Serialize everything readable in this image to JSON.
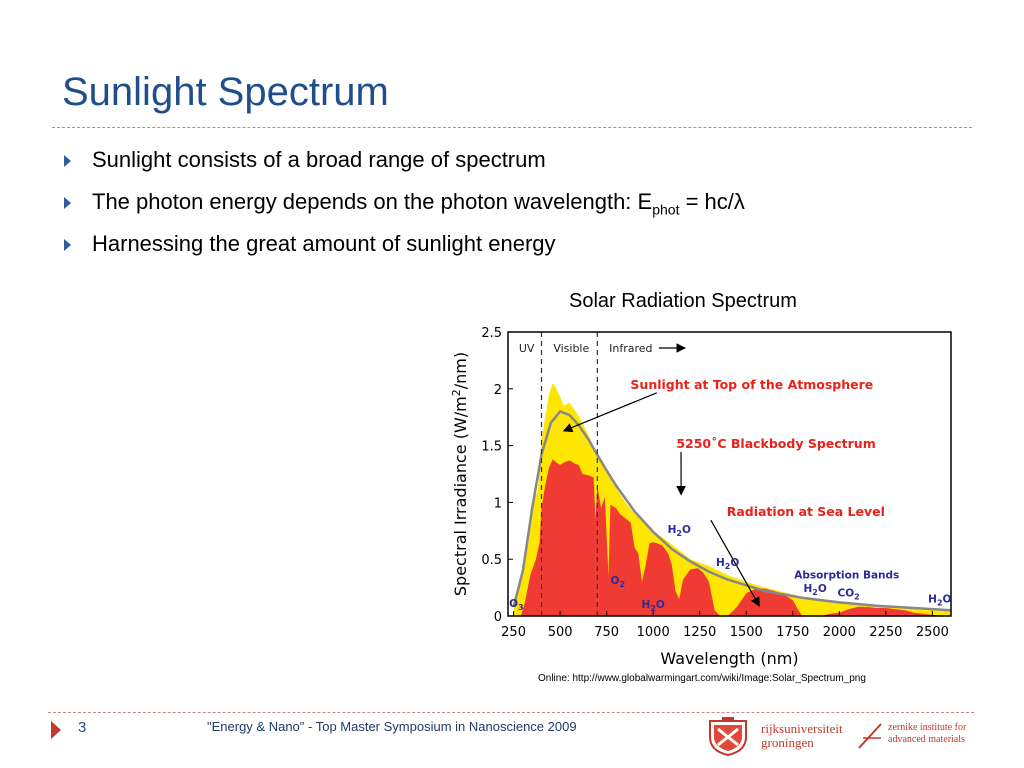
{
  "slide": {
    "title": "Sunlight Spectrum",
    "bullets": [
      {
        "text": "Sunlight consists of a broad range of spectrum"
      },
      {
        "text": "The photon energy depends on the photon wavelength: E",
        "sub": "phot",
        "after": " = hc/λ"
      },
      {
        "text": "Harnessing the great amount of sunlight energy"
      }
    ],
    "chart_caption": "Solar Radiation Spectrum",
    "source": "Online: http://www.globalwarmingart.com/wiki/Image:Solar_Spectrum_png",
    "footer": {
      "page_number": "3",
      "text": "\"Energy & Nano\" - Top Master Symposium in Nanoscience 2009",
      "logo1_line1": "rijksuniversiteit",
      "logo1_line2": "groningen",
      "logo2_line1": "zernike institute for",
      "logo2_line2": "advanced materials"
    },
    "colors": {
      "title": "#1f4e8c",
      "marker": "#2f5d9b",
      "accent": "#c0392b"
    }
  },
  "chart_data": {
    "type": "area",
    "xlabel": "Wavelength (nm)",
    "ylabel_parts": [
      "Spectral Irradiance (W/m",
      "2",
      "/nm)"
    ],
    "xlim": [
      220,
      2600
    ],
    "ylim": [
      0,
      2.5
    ],
    "xticks": [
      250,
      500,
      750,
      1000,
      1250,
      1500,
      1750,
      2000,
      2250,
      2500
    ],
    "yticks": [
      0,
      0.5,
      1,
      1.5,
      2,
      2.5
    ],
    "ytick_labels": [
      "0",
      "0.5",
      "1",
      "1.5",
      "2",
      "2.5"
    ],
    "regions": [
      {
        "label": "UV",
        "x": 320
      },
      {
        "label": "Visible",
        "x": 560
      },
      {
        "label": "Infrared",
        "x": 880
      }
    ],
    "region_boundaries": [
      400,
      700
    ],
    "series": [
      {
        "name": "Sunlight at Top of the Atmosphere",
        "color": "#ffe600",
        "points": [
          [
            250,
            0.04
          ],
          [
            300,
            0.45
          ],
          [
            350,
            1.0
          ],
          [
            380,
            1.1
          ],
          [
            400,
            1.55
          ],
          [
            420,
            1.75
          ],
          [
            440,
            1.95
          ],
          [
            460,
            2.05
          ],
          [
            480,
            2.0
          ],
          [
            500,
            1.93
          ],
          [
            520,
            1.85
          ],
          [
            550,
            1.88
          ],
          [
            600,
            1.76
          ],
          [
            650,
            1.6
          ],
          [
            700,
            1.43
          ],
          [
            750,
            1.28
          ],
          [
            800,
            1.13
          ],
          [
            850,
            1.0
          ],
          [
            900,
            0.9
          ],
          [
            950,
            0.83
          ],
          [
            1000,
            0.75
          ],
          [
            1100,
            0.63
          ],
          [
            1200,
            0.5
          ],
          [
            1300,
            0.44
          ],
          [
            1400,
            0.36
          ],
          [
            1500,
            0.3
          ],
          [
            1600,
            0.25
          ],
          [
            1700,
            0.21
          ],
          [
            1800,
            0.17
          ],
          [
            1900,
            0.15
          ],
          [
            2000,
            0.13
          ],
          [
            2100,
            0.11
          ],
          [
            2200,
            0.09
          ],
          [
            2300,
            0.08
          ],
          [
            2400,
            0.07
          ],
          [
            2500,
            0.06
          ],
          [
            2600,
            0.05
          ]
        ]
      },
      {
        "name": "Radiation at Sea Level",
        "color": "#ef3b33",
        "points": [
          [
            250,
            0
          ],
          [
            290,
            0
          ],
          [
            310,
            0.12
          ],
          [
            340,
            0.36
          ],
          [
            370,
            0.5
          ],
          [
            390,
            0.65
          ],
          [
            400,
            0.95
          ],
          [
            420,
            1.15
          ],
          [
            440,
            1.3
          ],
          [
            460,
            1.38
          ],
          [
            480,
            1.35
          ],
          [
            500,
            1.33
          ],
          [
            520,
            1.35
          ],
          [
            550,
            1.37
          ],
          [
            580,
            1.34
          ],
          [
            600,
            1.33
          ],
          [
            620,
            1.25
          ],
          [
            650,
            1.24
          ],
          [
            680,
            1.22
          ],
          [
            690,
            0.85
          ],
          [
            700,
            1.15
          ],
          [
            720,
            0.95
          ],
          [
            740,
            1.05
          ],
          [
            760,
            0.35
          ],
          [
            770,
            0.98
          ],
          [
            800,
            0.95
          ],
          [
            820,
            0.9
          ],
          [
            850,
            0.86
          ],
          [
            880,
            0.82
          ],
          [
            900,
            0.6
          ],
          [
            920,
            0.55
          ],
          [
            940,
            0.3
          ],
          [
            960,
            0.45
          ],
          [
            980,
            0.64
          ],
          [
            1000,
            0.65
          ],
          [
            1020,
            0.64
          ],
          [
            1050,
            0.62
          ],
          [
            1080,
            0.55
          ],
          [
            1100,
            0.45
          ],
          [
            1120,
            0.22
          ],
          [
            1140,
            0.15
          ],
          [
            1160,
            0.32
          ],
          [
            1200,
            0.41
          ],
          [
            1240,
            0.42
          ],
          [
            1270,
            0.38
          ],
          [
            1300,
            0.3
          ],
          [
            1330,
            0.05
          ],
          [
            1360,
            0.0
          ],
          [
            1400,
            0.0
          ],
          [
            1420,
            0.03
          ],
          [
            1450,
            0.08
          ],
          [
            1500,
            0.2
          ],
          [
            1550,
            0.24
          ],
          [
            1600,
            0.24
          ],
          [
            1650,
            0.22
          ],
          [
            1700,
            0.19
          ],
          [
            1750,
            0.14
          ],
          [
            1780,
            0.05
          ],
          [
            1800,
            0.0
          ],
          [
            1900,
            0.0
          ],
          [
            1950,
            0.02
          ],
          [
            2000,
            0.03
          ],
          [
            2050,
            0.06
          ],
          [
            2100,
            0.08
          ],
          [
            2150,
            0.08
          ],
          [
            2200,
            0.07
          ],
          [
            2250,
            0.07
          ],
          [
            2300,
            0.06
          ],
          [
            2350,
            0.05
          ],
          [
            2400,
            0.03
          ],
          [
            2450,
            0.02
          ],
          [
            2500,
            0.01
          ],
          [
            2600,
            0.0
          ]
        ]
      },
      {
        "name": "5250˚C Blackbody Spectrum",
        "color": "#888888",
        "points": [
          [
            250,
            0.08
          ],
          [
            300,
            0.4
          ],
          [
            350,
            0.95
          ],
          [
            400,
            1.42
          ],
          [
            450,
            1.7
          ],
          [
            500,
            1.8
          ],
          [
            550,
            1.77
          ],
          [
            600,
            1.68
          ],
          [
            650,
            1.56
          ],
          [
            700,
            1.42
          ],
          [
            750,
            1.28
          ],
          [
            800,
            1.15
          ],
          [
            900,
            0.92
          ],
          [
            1000,
            0.74
          ],
          [
            1100,
            0.59
          ],
          [
            1200,
            0.48
          ],
          [
            1300,
            0.39
          ],
          [
            1400,
            0.32
          ],
          [
            1500,
            0.27
          ],
          [
            1600,
            0.22
          ],
          [
            1700,
            0.19
          ],
          [
            1800,
            0.16
          ],
          [
            1900,
            0.14
          ],
          [
            2000,
            0.12
          ],
          [
            2200,
            0.09
          ],
          [
            2400,
            0.07
          ],
          [
            2600,
            0.05
          ]
        ]
      }
    ],
    "annotations": [
      {
        "text": "Sunlight at Top of the Atmosphere",
        "color": "#e8221a",
        "x": 1530,
        "y": 2.0,
        "arrow_to": [
          520,
          1.63
        ]
      },
      {
        "text": "5250˚C Blackbody Spectrum",
        "color": "#e8221a",
        "x": 1660,
        "y": 1.48,
        "arrow_to": [
          1150,
          1.07
        ]
      },
      {
        "text": "Radiation at Sea Level",
        "color": "#e8221a",
        "x": 1820,
        "y": 0.88,
        "arrow_to": [
          1570,
          0.09
        ]
      }
    ],
    "absorption_bands": {
      "title": "Absorption Bands",
      "color": "#2b2b9c",
      "title_pos": [
        2040,
        0.33
      ],
      "labels": [
        {
          "text": "O3",
          "x": 265,
          "y": 0.08
        },
        {
          "text": "O2",
          "x": 810,
          "y": 0.28
        },
        {
          "text": "H2O",
          "x": 1000,
          "y": 0.07
        },
        {
          "text": "H2O",
          "x": 1140,
          "y": 0.73
        },
        {
          "text": "H2O",
          "x": 1400,
          "y": 0.44
        },
        {
          "text": "H2O",
          "x": 1870,
          "y": 0.21
        },
        {
          "text": "CO2",
          "x": 2050,
          "y": 0.17
        },
        {
          "text": "H2O",
          "x": 2540,
          "y": 0.12
        }
      ]
    }
  }
}
